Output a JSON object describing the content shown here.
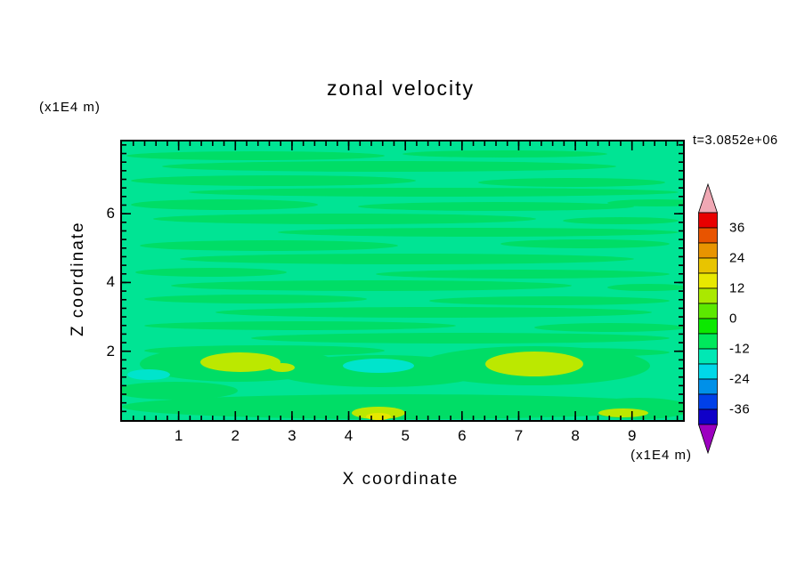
{
  "chart_data": {
    "type": "heatmap",
    "title": "zonal velocity",
    "xlabel": "X coordinate",
    "ylabel": "Z coordinate",
    "x_unit_label": "(x1E4 m)",
    "y_unit_label": "(x1E4 m)",
    "time_annotation": "t=3.0852e+06",
    "xlim": [
      0,
      9.9
    ],
    "ylim": [
      0,
      8.1
    ],
    "x_ticks": [
      1,
      2,
      3,
      4,
      5,
      6,
      7,
      8,
      9
    ],
    "y_ticks": [
      2,
      4,
      6
    ],
    "x_minor_step": 0.2,
    "y_minor_step": 0.25,
    "grid": false,
    "legend_position": "right-colorbar",
    "colorbar": {
      "labels": [
        "36",
        "24",
        "12",
        "0",
        "-12",
        "-24",
        "-36"
      ],
      "levels": [
        42,
        36,
        30,
        24,
        18,
        12,
        6,
        0,
        -6,
        -12,
        -18,
        -24,
        -30,
        -36,
        -42
      ],
      "segment_colors_top_to_bottom": [
        "#e80000",
        "#e85400",
        "#e89400",
        "#e8c400",
        "#e8e800",
        "#aae800",
        "#5ce800",
        "#0ce800",
        "#00e85c",
        "#00e8b4",
        "#00d8e8",
        "#0090e8",
        "#0040e8",
        "#1000c8"
      ],
      "above_range_color": "#f0a8b4",
      "below_range_color": "#9c00c0"
    },
    "field_summary": "Zonal velocity field is mostly near zero: thin horizontal streaky bands alternating between roughly -6 and +6 across the whole domain; below z of about 2x10^4 m there are patches of +6 to +18 (yellow-green) near x of 2, 5 and 7x10^4 m, and a patch of -6 to -12 (cyan) near x of 4.5x10^4 m."
  },
  "field_render": {
    "base_color": "#00e494",
    "colors": {
      "g": "#00dd66",
      "yg": "#bce800",
      "cy": "#00e4cc",
      "ye": "#e6e800"
    },
    "blobs": [
      [
        "g",
        150,
        16,
        145,
        5
      ],
      [
        "g",
        430,
        14,
        115,
        4
      ],
      [
        "g",
        300,
        28,
        255,
        6
      ],
      [
        "g",
        170,
        44,
        160,
        6
      ],
      [
        "g",
        505,
        46,
        105,
        5
      ],
      [
        "g",
        350,
        57,
        275,
        5
      ],
      [
        "g",
        115,
        71,
        105,
        6
      ],
      [
        "g",
        420,
        73,
        155,
        5
      ],
      [
        "g",
        600,
        69,
        55,
        4
      ],
      [
        "g",
        250,
        87,
        215,
        6
      ],
      [
        "g",
        560,
        89,
        65,
        4
      ],
      [
        "g",
        400,
        102,
        225,
        5
      ],
      [
        "g",
        165,
        117,
        145,
        6
      ],
      [
        "g",
        520,
        115,
        95,
        5
      ],
      [
        "g",
        320,
        132,
        255,
        6
      ],
      [
        "g",
        100,
        147,
        85,
        5
      ],
      [
        "g",
        450,
        149,
        165,
        5
      ],
      [
        "g",
        280,
        162,
        225,
        6
      ],
      [
        "g",
        590,
        164,
        45,
        4
      ],
      [
        "g",
        150,
        177,
        125,
        5
      ],
      [
        "g",
        480,
        179,
        135,
        5
      ],
      [
        "g",
        350,
        192,
        245,
        6
      ],
      [
        "g",
        200,
        207,
        175,
        5
      ],
      [
        "g",
        548,
        209,
        85,
        5
      ],
      [
        "g",
        380,
        221,
        235,
        6
      ],
      [
        "g",
        160,
        235,
        135,
        6
      ],
      [
        "g",
        500,
        237,
        115,
        5
      ],
      [
        "g",
        130,
        250,
        110,
        20
      ],
      [
        "g",
        290,
        258,
        120,
        18
      ],
      [
        "g",
        463,
        252,
        130,
        22
      ],
      [
        "g",
        315,
        298,
        315,
        14
      ],
      [
        "g",
        580,
        300,
        60,
        12
      ],
      [
        "g",
        60,
        280,
        70,
        10
      ],
      [
        "yg",
        133,
        248,
        45,
        11
      ],
      [
        "yg",
        463,
        250,
        55,
        14
      ],
      [
        "yg",
        288,
        305,
        30,
        7
      ],
      [
        "yg",
        563,
        305,
        28,
        5
      ],
      [
        "yg",
        180,
        254,
        14,
        5
      ],
      [
        "cy",
        288,
        252,
        40,
        8
      ],
      [
        "cy",
        30,
        262,
        24,
        6
      ],
      [
        "ye",
        288,
        309,
        14,
        4
      ]
    ]
  }
}
